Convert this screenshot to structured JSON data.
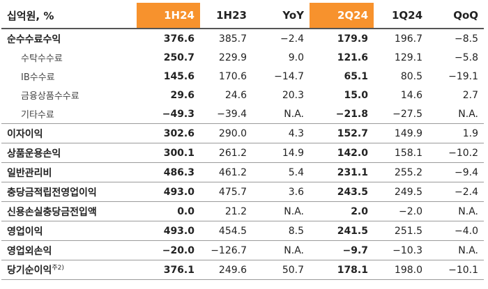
{
  "header": {
    "unit": "십억원, %",
    "columns": [
      "1H24",
      "1H23",
      "YoY",
      "2Q24",
      "1Q24",
      "QoQ"
    ]
  },
  "rows": [
    {
      "label": "순수수료수익",
      "values": [
        "376.6",
        "385.7",
        "−2.4",
        "179.9",
        "196.7",
        "−8.5"
      ],
      "children": [
        {
          "label": "수탁수수료",
          "values": [
            "250.7",
            "229.9",
            "9.0",
            "121.6",
            "129.1",
            "−5.8"
          ]
        },
        {
          "label": "IB수수료",
          "values": [
            "145.6",
            "170.6",
            "−14.7",
            "65.1",
            "80.5",
            "−19.1"
          ]
        },
        {
          "label": "금융상품수수료",
          "values": [
            "29.6",
            "24.6",
            "20.3",
            "15.0",
            "14.6",
            "2.7"
          ]
        },
        {
          "label": "기타수료",
          "values": [
            "−49.3",
            "−39.4",
            "N.A.",
            "−21.8",
            "−27.5",
            "N.A."
          ]
        }
      ]
    },
    {
      "label": "이자이익",
      "values": [
        "302.6",
        "290.0",
        "4.3",
        "152.7",
        "149.9",
        "1.9"
      ]
    },
    {
      "label": "상품운용손익",
      "values": [
        "300.1",
        "261.2",
        "14.9",
        "142.0",
        "158.1",
        "−10.2"
      ]
    },
    {
      "label": "일반관리비",
      "values": [
        "486.3",
        "461.2",
        "5.4",
        "231.1",
        "255.2",
        "−9.4"
      ]
    },
    {
      "label": "충당금적립전영업이익",
      "values": [
        "493.0",
        "475.7",
        "3.6",
        "243.5",
        "249.5",
        "−2.4"
      ]
    },
    {
      "label": "신용손실충당금전입액",
      "values": [
        "0.0",
        "21.2",
        "N.A.",
        "2.0",
        "−2.0",
        "N.A."
      ]
    },
    {
      "label": "영업이익",
      "values": [
        "493.0",
        "454.5",
        "8.5",
        "241.5",
        "251.5",
        "−4.0"
      ]
    },
    {
      "label": "영업외손익",
      "values": [
        "−20.0",
        "−126.7",
        "N.A.",
        "−9.7",
        "−10.3",
        "N.A."
      ]
    },
    {
      "label": "당기순이익",
      "note": "주2)",
      "values": [
        "376.1",
        "249.6",
        "50.7",
        "178.1",
        "198.0",
        "−10.1"
      ]
    }
  ]
}
